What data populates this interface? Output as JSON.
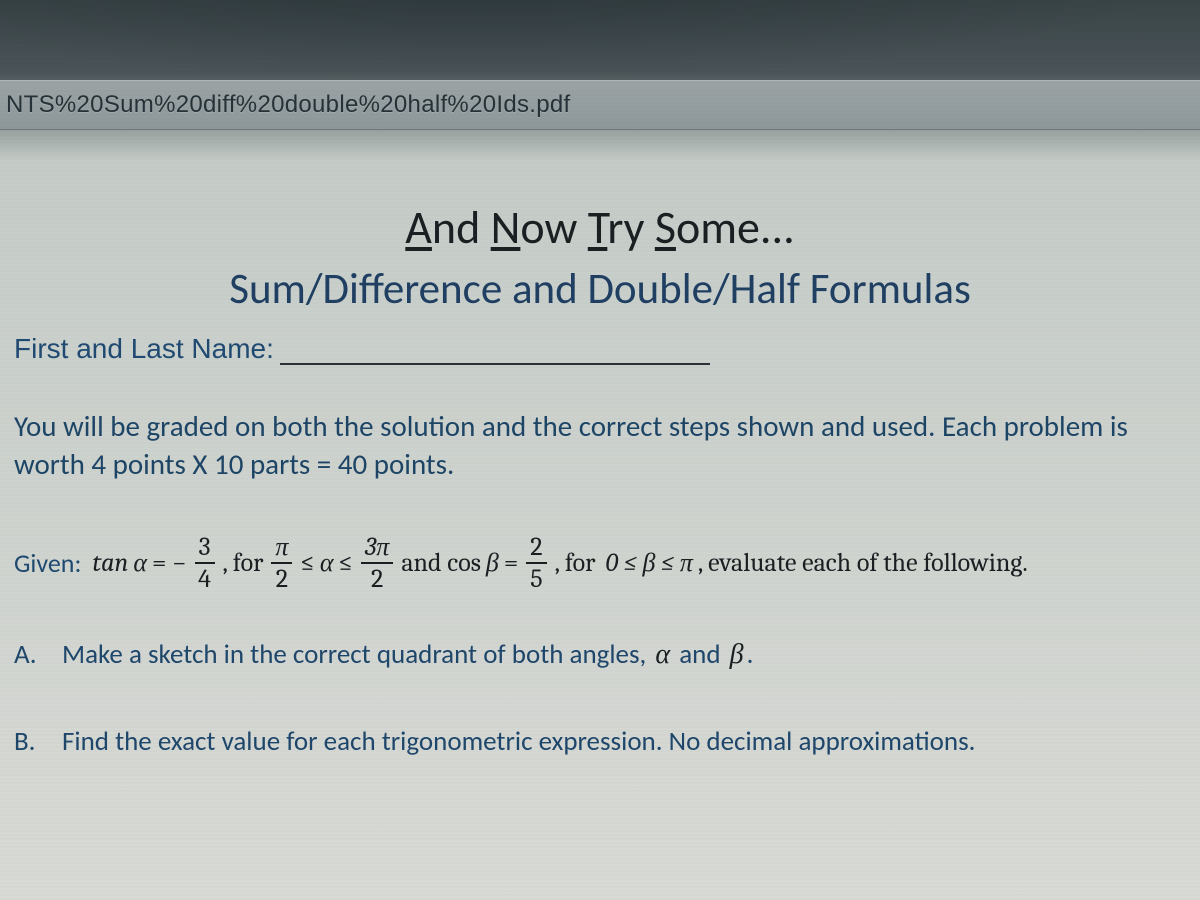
{
  "url_bar": "NTS%20Sum%20diff%20double%20half%20Ids.pdf",
  "title_line1_parts": [
    "A",
    "nd ",
    "N",
    "ow ",
    "T",
    "ry ",
    "S",
    "ome..."
  ],
  "title_line2": "Sum/Difference and Double/Half Formulas",
  "name_label": "First and Last Name:",
  "instructions": "You will be graded on both the solution and the correct steps shown and used. Each problem is worth 4 points X 10 parts = 40 points.",
  "given": {
    "label": "Given:",
    "tan_text": "tan",
    "alpha": "α",
    "eq_neg": "= −",
    "frac1": {
      "num": "3",
      "den": "4"
    },
    "comma_for": ", for",
    "frac2": {
      "num": "π",
      "den": "2"
    },
    "le1": "≤",
    "le2": "≤",
    "frac3": {
      "num": "3π",
      "den": "2"
    },
    "and_cos": "and cos",
    "beta": "β",
    "eq2": "=",
    "frac4": {
      "num": "2",
      "den": "5"
    },
    "comma_for2": ", for",
    "range_beta": "0 ≤ β ≤ π",
    "tail": ", evaluate each of the following."
  },
  "partA": {
    "letter": "A.",
    "text_pre": "Make a sketch in the correct quadrant of both angles, ",
    "alpha": "α",
    "and": " and ",
    "beta": "β",
    "period": "."
  },
  "partB": {
    "letter": "B.",
    "text": "Find the exact value for each trigonometric expression.   No decimal approximations."
  },
  "colors": {
    "heading_blue": "#1f3f63",
    "body_blue": "#1d4566",
    "black": "#1a1f22",
    "bar_bg": "#8e989a"
  }
}
